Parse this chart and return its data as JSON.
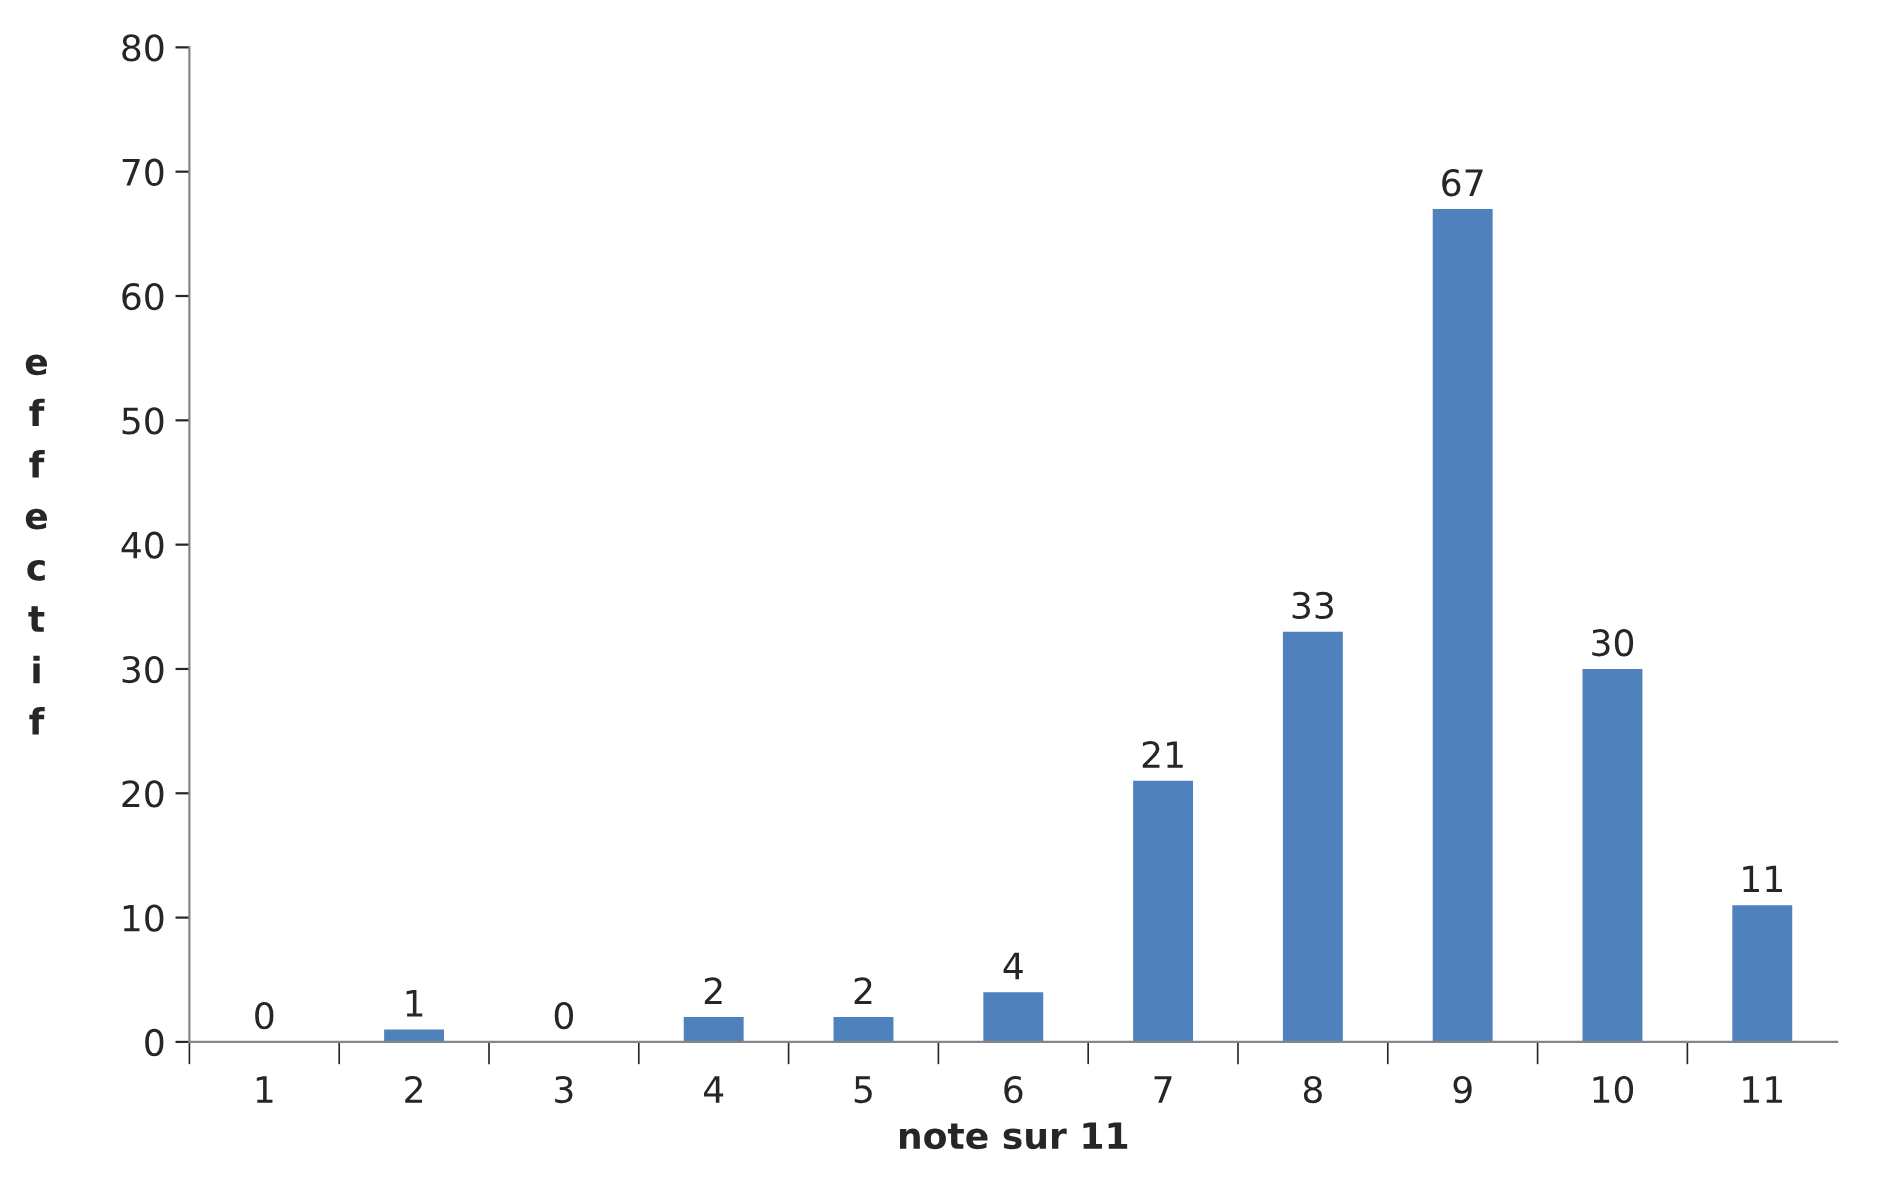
{
  "chart_data": {
    "type": "bar",
    "xlabel": "note sur 11",
    "ylabel": "effectif",
    "categories": [
      "1",
      "2",
      "3",
      "4",
      "5",
      "6",
      "7",
      "8",
      "9",
      "10",
      "11"
    ],
    "values": [
      0,
      1,
      0,
      2,
      2,
      4,
      21,
      33,
      67,
      30,
      11
    ],
    "color": "#4f81bd",
    "ylim": [
      0,
      80
    ],
    "yticks": [
      0,
      10,
      20,
      30,
      40,
      50,
      60,
      70,
      80
    ],
    "data_labels": true,
    "grid": false,
    "legend": false
  }
}
